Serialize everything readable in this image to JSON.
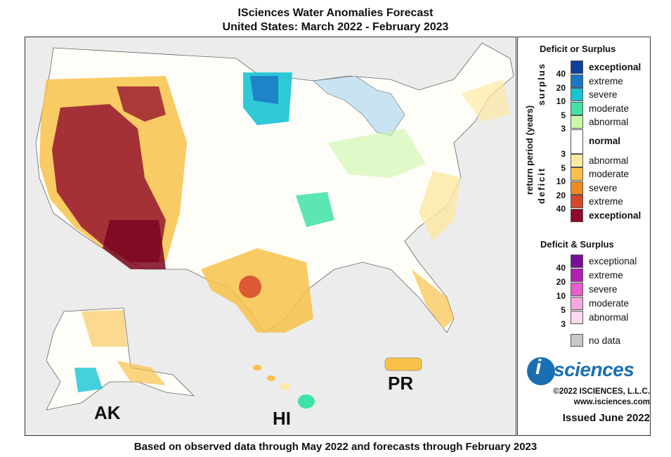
{
  "title": {
    "line1": "ISciences Water Anomalies Forecast",
    "line2": "United States: March 2022 - February 2023"
  },
  "footer": "Based on observed data through May 2022 and forecasts through February 2023",
  "map_labels": {
    "ak": "AK",
    "hi": "HI",
    "pr": "PR"
  },
  "legend": {
    "deficit_surplus_title": "Deficit or Surplus",
    "axis_title": "return period (years)",
    "surplus_word": "surplus",
    "deficit_word": "deficit",
    "surplus": [
      {
        "label": "exceptional",
        "color": "#0d3f9f",
        "bold": true
      },
      {
        "label": "extreme",
        "color": "#1a78c8"
      },
      {
        "label": "severe",
        "color": "#17c4d4"
      },
      {
        "label": "moderate",
        "color": "#3fe3a6"
      },
      {
        "label": "abnormal",
        "color": "#c9f7a8"
      }
    ],
    "normal": {
      "label": "normal",
      "color": "#ffffff"
    },
    "deficit": [
      {
        "label": "abnormal",
        "color": "#fde9a2"
      },
      {
        "label": "moderate",
        "color": "#f8c24a"
      },
      {
        "label": "severe",
        "color": "#f08a22"
      },
      {
        "label": "extreme",
        "color": "#d8452a"
      },
      {
        "label": "exceptional",
        "color": "#8e0a2a",
        "bold": true
      }
    ],
    "surplus_numbers": [
      "40",
      "20",
      "10",
      "5",
      "3"
    ],
    "deficit_numbers": [
      "3",
      "5",
      "10",
      "20",
      "40"
    ],
    "both_title": "Deficit & Surplus",
    "both": [
      {
        "label": "exceptional",
        "color": "#7a0f9a"
      },
      {
        "label": "extreme",
        "color": "#b320b5"
      },
      {
        "label": "severe",
        "color": "#ea5ccc"
      },
      {
        "label": "moderate",
        "color": "#f5a6e0"
      },
      {
        "label": "abnormal",
        "color": "#fbd9ef"
      }
    ],
    "both_numbers": [
      "40",
      "20",
      "10",
      "5",
      "3"
    ],
    "no_data": {
      "label": "no data",
      "color": "#c8c8c8"
    }
  },
  "branding": {
    "logo_i": "i",
    "logo_text": "sciences",
    "copyright": "©2022 ISCIENCES, L.L.C.",
    "website": "www.isciences.com",
    "issued": "Issued June 2022"
  }
}
